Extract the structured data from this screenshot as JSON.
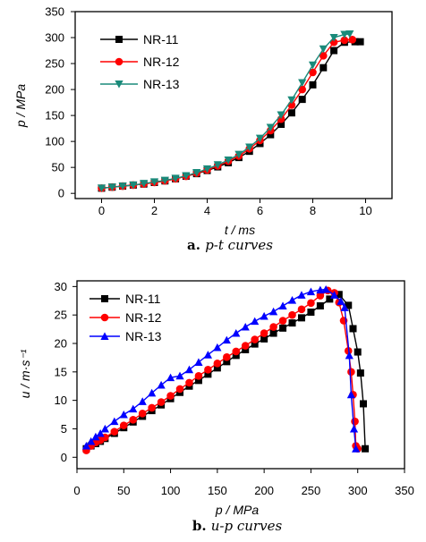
{
  "chart_data": [
    {
      "type": "line",
      "xlabel": "t / ms",
      "ylabel": "p / MPa",
      "xlim": [
        -1,
        11
      ],
      "ylim": [
        -10,
        350
      ],
      "xticks": [
        "0",
        "2",
        "4",
        "6",
        "8",
        "10"
      ],
      "yticks": [
        "0",
        "50",
        "100",
        "150",
        "200",
        "250",
        "300",
        "350"
      ],
      "legend_position": "top-left",
      "caption": {
        "letter": "a.",
        "text": "p-t curves"
      },
      "series": [
        {
          "name": "NR-11",
          "color": "#000000",
          "marker": "square",
          "x": [
            0,
            0.4,
            0.8,
            1.2,
            1.6,
            2.0,
            2.4,
            2.8,
            3.2,
            3.6,
            4.0,
            4.4,
            4.8,
            5.2,
            5.6,
            6.0,
            6.4,
            6.8,
            7.2,
            7.6,
            8.0,
            8.4,
            8.8,
            9.2,
            9.6,
            9.8
          ],
          "y": [
            10,
            12,
            14,
            16,
            18,
            21,
            24,
            28,
            33,
            38,
            44,
            51,
            59,
            69,
            81,
            96,
            113,
            133,
            155,
            181,
            209,
            242,
            275,
            291,
            292,
            292
          ]
        },
        {
          "name": "NR-12",
          "color": "#ff0000",
          "marker": "circle",
          "x": [
            0,
            0.4,
            0.8,
            1.2,
            1.6,
            2.0,
            2.4,
            2.8,
            3.2,
            3.6,
            4.0,
            4.4,
            4.8,
            5.2,
            5.6,
            6.0,
            6.4,
            6.8,
            7.2,
            7.6,
            8.0,
            8.4,
            8.8,
            9.2,
            9.5
          ],
          "y": [
            10,
            12,
            14,
            16,
            18,
            21,
            24,
            28,
            33,
            39,
            45,
            53,
            62,
            72,
            86,
            102,
            121,
            143,
            170,
            200,
            233,
            265,
            291,
            295,
            296
          ]
        },
        {
          "name": "NR-13",
          "color": "#1a8a7a",
          "marker": "triangle-down",
          "x": [
            0,
            0.4,
            0.8,
            1.2,
            1.6,
            2.0,
            2.4,
            2.8,
            3.2,
            3.6,
            4.0,
            4.4,
            4.8,
            5.2,
            5.6,
            6.0,
            6.4,
            6.8,
            7.2,
            7.6,
            8.0,
            8.4,
            8.8,
            9.2,
            9.4
          ],
          "y": [
            10,
            12,
            14,
            16,
            19,
            22,
            25,
            29,
            34,
            40,
            47,
            55,
            64,
            75,
            89,
            106,
            127,
            151,
            180,
            213,
            247,
            278,
            300,
            306,
            307
          ]
        }
      ]
    },
    {
      "type": "line",
      "xlabel": "p / MPa",
      "ylabel": "u / m·s⁻¹",
      "xlim": [
        0,
        350
      ],
      "ylim": [
        -2,
        31
      ],
      "xticks": [
        "0",
        "50",
        "100",
        "150",
        "200",
        "250",
        "300",
        "350"
      ],
      "yticks": [
        "0",
        "5",
        "10",
        "15",
        "20",
        "25",
        "30"
      ],
      "legend_position": "top-left",
      "caption": {
        "letter": "b.",
        "text": "u-p curves"
      },
      "series": [
        {
          "name": "NR-11",
          "color": "#000000",
          "marker": "square",
          "x": [
            10,
            15,
            20,
            25,
            30,
            40,
            50,
            60,
            70,
            80,
            90,
            100,
            110,
            120,
            130,
            140,
            150,
            160,
            170,
            180,
            190,
            200,
            210,
            220,
            230,
            240,
            250,
            260,
            270,
            280,
            290,
            295,
            300,
            303,
            306,
            308
          ],
          "y": [
            1.5,
            2.0,
            2.4,
            2.8,
            3.3,
            4.2,
            5.2,
            6.2,
            7.2,
            8.2,
            9.2,
            10.3,
            11.4,
            12.5,
            13.5,
            14.6,
            15.7,
            16.8,
            17.9,
            18.9,
            19.9,
            20.8,
            21.8,
            22.7,
            23.6,
            24.5,
            25.5,
            26.6,
            27.8,
            28.6,
            26.7,
            22.6,
            18.5,
            14.8,
            9.4,
            1.5
          ]
        },
        {
          "name": "NR-12",
          "color": "#ff0000",
          "marker": "circle",
          "x": [
            10,
            15,
            20,
            25,
            30,
            40,
            50,
            60,
            70,
            80,
            90,
            100,
            110,
            120,
            130,
            140,
            150,
            160,
            170,
            180,
            190,
            200,
            210,
            220,
            230,
            240,
            250,
            260,
            268,
            275,
            280,
            285,
            290,
            293,
            295,
            297,
            298,
            300
          ],
          "y": [
            1.2,
            2.0,
            2.6,
            3.0,
            3.5,
            4.5,
            5.6,
            6.6,
            7.7,
            8.7,
            9.7,
            10.8,
            12.0,
            13.1,
            14.3,
            15.4,
            16.5,
            17.6,
            18.6,
            19.6,
            20.7,
            21.8,
            22.9,
            24.0,
            25.0,
            26.0,
            27.1,
            28.4,
            29.3,
            28.9,
            27.2,
            24.0,
            18.7,
            15.0,
            11.0,
            6.3,
            2.0,
            1.5
          ]
        },
        {
          "name": "NR-13",
          "color": "#0000ff",
          "marker": "triangle-up",
          "x": [
            10,
            15,
            20,
            25,
            30,
            40,
            50,
            60,
            70,
            80,
            90,
            100,
            110,
            120,
            130,
            140,
            150,
            160,
            170,
            180,
            190,
            200,
            210,
            220,
            230,
            240,
            250,
            260,
            266,
            275,
            282,
            286,
            291,
            293,
            296,
            298
          ],
          "y": [
            2.0,
            2.8,
            3.6,
            4.2,
            5.0,
            6.3,
            7.5,
            8.5,
            9.8,
            11.3,
            12.7,
            14.0,
            14.3,
            15.4,
            16.7,
            18.0,
            19.3,
            20.6,
            21.8,
            22.9,
            23.9,
            24.8,
            25.6,
            26.6,
            27.6,
            28.5,
            29.1,
            29.4,
            29.5,
            28.5,
            27.4,
            26.3,
            17.9,
            11.0,
            5.0,
            1.5
          ]
        }
      ]
    }
  ]
}
